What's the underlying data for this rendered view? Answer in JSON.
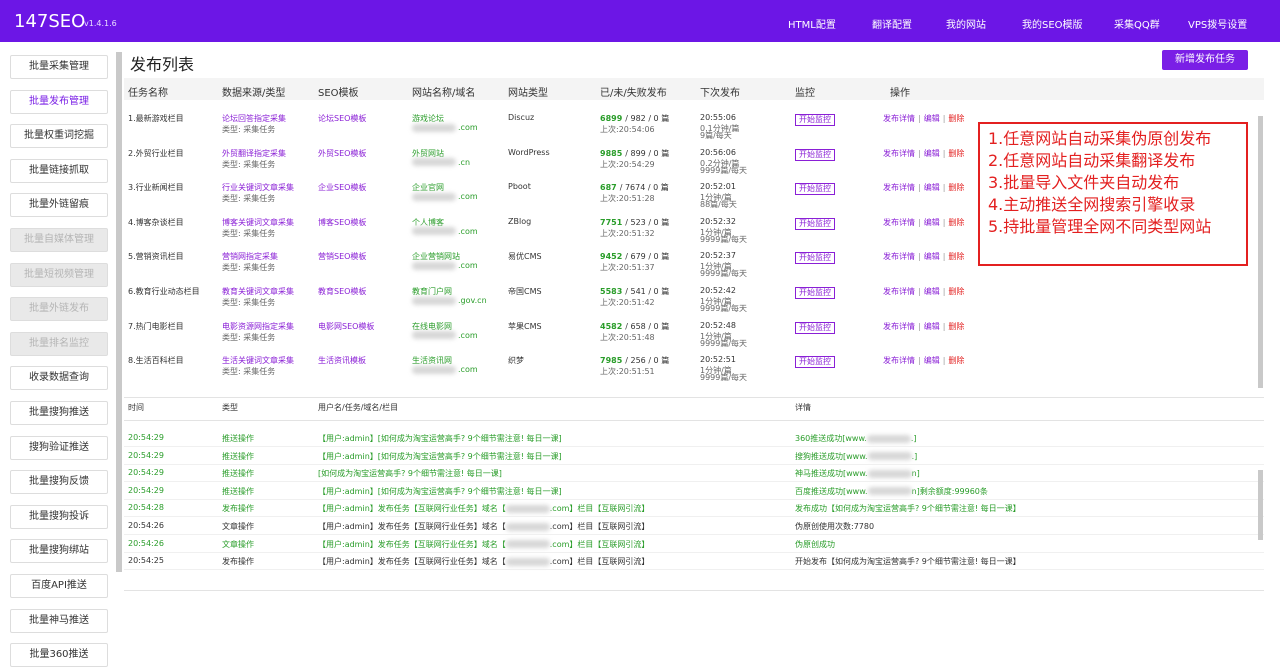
{
  "header": {
    "brand": "147SEO",
    "version": "v1.4.1.6",
    "nav": [
      "HTML配置",
      "翻译配置",
      "我的网站",
      "我的SEO模版",
      "采集QQ群",
      "VPS拨号设置"
    ]
  },
  "sidebar": {
    "items": [
      "批量采集管理",
      "批量发布管理",
      "批量权重词挖掘",
      "批量链接抓取",
      "批量外链留痕",
      "批量自媒体管理",
      "批量短视频管理",
      "批量外链发布",
      "批量排名监控",
      "收录数据查询",
      "批量搜狗推送",
      "搜狗验证推送",
      "批量搜狗反馈",
      "批量搜狗投诉",
      "批量搜狗绑站",
      "百度API推送",
      "批量神马推送",
      "批量360推送"
    ]
  },
  "main": {
    "title": "发布列表",
    "add_button": "新增发布任务",
    "table": {
      "headers": [
        "任务名称",
        "数据来源/类型",
        "SEO模板",
        "网站名称/域名",
        "网站类型",
        "已/未/失败发布",
        "下次发布",
        "监控",
        "操作"
      ],
      "source_type": "类型: 采集任务",
      "monitor": "开始监控",
      "actions": [
        "发布详情",
        "编辑",
        "删除"
      ],
      "sep": "|",
      "rows": [
        {
          "name": "1.最新游戏栏目",
          "source": "论坛回答指定采集",
          "seo": "论坛SEO模板",
          "site": "游戏论坛",
          "domain": ".com",
          "site_type": "Discuz",
          "published": "6899",
          "rest": "/ 982 / 0 篇",
          "last": "上次:20:54:06",
          "next": "20:55:06",
          "sub1": "0.1分钟/篇",
          "sub2": "9篇/每天"
        },
        {
          "name": "2.外贸行业栏目",
          "source": "外贸翻译指定采集",
          "seo": "外贸SEO模板",
          "site": "外贸网站",
          "domain": ".cn",
          "site_type": "WordPress",
          "published": "9885",
          "rest": "/ 899 / 0 篇",
          "last": "上次:20:54:29",
          "next": "20:56:06",
          "sub1": "0.2分钟/篇",
          "sub2": "9999篇/每天"
        },
        {
          "name": "3.行业新闻栏目",
          "source": "行业关键词文章采集",
          "seo": "企业SEO模板",
          "site": "企业官网",
          "domain": ".com",
          "site_type": "Pboot",
          "published": "687",
          "rest": "/ 7674 / 0 篇",
          "last": "上次:20:51:28",
          "next": "20:52:01",
          "sub1": "1分钟/篇",
          "sub2": "88篇/每天"
        },
        {
          "name": "4.博客杂谈栏目",
          "source": "博客关键词文章采集",
          "seo": "博客SEO模板",
          "site": "个人博客",
          "domain": ".com",
          "site_type": "ZBlog",
          "published": "7751",
          "rest": "/ 523 / 0 篇",
          "last": "上次:20:51:32",
          "next": "20:52:32",
          "sub1": "1分钟/篇",
          "sub2": "9999篇/每天"
        },
        {
          "name": "5.营销资讯栏目",
          "source": "营销网指定采集",
          "seo": "营销SEO模板",
          "site": "企业营销网站",
          "domain": ".com",
          "site_type": "易优CMS",
          "published": "9452",
          "rest": "/ 679 / 0 篇",
          "last": "上次:20:51:37",
          "next": "20:52:37",
          "sub1": "1分钟/篇",
          "sub2": "9999篇/每天"
        },
        {
          "name": "6.教育行业动态栏目",
          "source": "教育关键词文章采集",
          "seo": "教育SEO模板",
          "site": "教育门户网",
          "domain": ".gov.cn",
          "site_type": "帝国CMS",
          "published": "5583",
          "rest": "/ 541 / 0 篇",
          "last": "上次:20:51:42",
          "next": "20:52:42",
          "sub1": "1分钟/篇",
          "sub2": "9999篇/每天"
        },
        {
          "name": "7.热门电影栏目",
          "source": "电影资源网指定采集",
          "seo": "电影网SEO模板",
          "site": "在线电影网",
          "domain": ".com",
          "site_type": "苹果CMS",
          "published": "4582",
          "rest": "/ 658 / 0 篇",
          "last": "上次:20:51:48",
          "next": "20:52:48",
          "sub1": "1分钟/篇",
          "sub2": "9999篇/每天"
        },
        {
          "name": "8.生活百科栏目",
          "source": "生活关键词文章采集",
          "seo": "生活资讯模板",
          "site": "生活资讯网",
          "domain": ".com",
          "site_type": "织梦",
          "published": "7985",
          "rest": "/ 256 / 0 篇",
          "last": "上次:20:51:51",
          "next": "20:52:51",
          "sub1": "1分钟/篇",
          "sub2": "9999篇/每天"
        }
      ]
    },
    "callout": [
      "1.任意网站自动采集伪原创发布",
      "2.任意网站自动采集翻译发布",
      "3.批量导入文件夹自动发布",
      "4.主动推送全网搜索引擎收录",
      "5.持批量管理全网不同类型网站"
    ],
    "log": {
      "headers": [
        "时间",
        "类型",
        "用户名/任务/域名/栏目",
        "详情"
      ],
      "rows": [
        [
          "20:54:29",
          "推送操作",
          "【用户:admin】[如何成为淘宝运营高手? 9个细节需注意! 每日一课]",
          "360推送成功[www.",
          ".]"
        ],
        [
          "20:54:29",
          "推送操作",
          "【用户:admin】[如何成为淘宝运营高手? 9个细节需注意! 每日一课]",
          "搜狗推送成功[www.",
          ".]"
        ],
        [
          "20:54:29",
          "推送操作",
          "[如何成为淘宝运营高手? 9个细节需注意! 每日一课]",
          "神马推送成功[www.",
          "n]"
        ],
        [
          "20:54:29",
          "推送操作",
          "【用户:admin】[如何成为淘宝运营高手? 9个细节需注意! 每日一课]",
          "百度推送成功[www.",
          "n]剩余额度:99960条"
        ],
        [
          "20:54:28",
          "发布操作",
          "【用户:admin】发布任务【互联网行业任务】域名【",
          "发布成功【如何成为淘宝运营高手? 9个细节需注意! 每日一课】",
          ".com】栏目【互联网引流】"
        ],
        [
          "20:54:26",
          "文章操作",
          "【用户:admin】发布任务【互联网行业任务】域名【",
          "伪原创使用次数:7780",
          ".com】栏目【互联网引流】"
        ],
        [
          "20:54:26",
          "文章操作",
          "【用户:admin】发布任务【互联网行业任务】域名【",
          "伪原创成功",
          ".com】栏目【互联网引流】"
        ],
        [
          "20:54:25",
          "发布操作",
          "【用户:admin】发布任务【互联网行业任务】域名【",
          "开始发布【如何成为淘宝运营高手? 9个细节需注意! 每日一课】",
          ".com】栏目【互联网引流】"
        ]
      ]
    }
  }
}
